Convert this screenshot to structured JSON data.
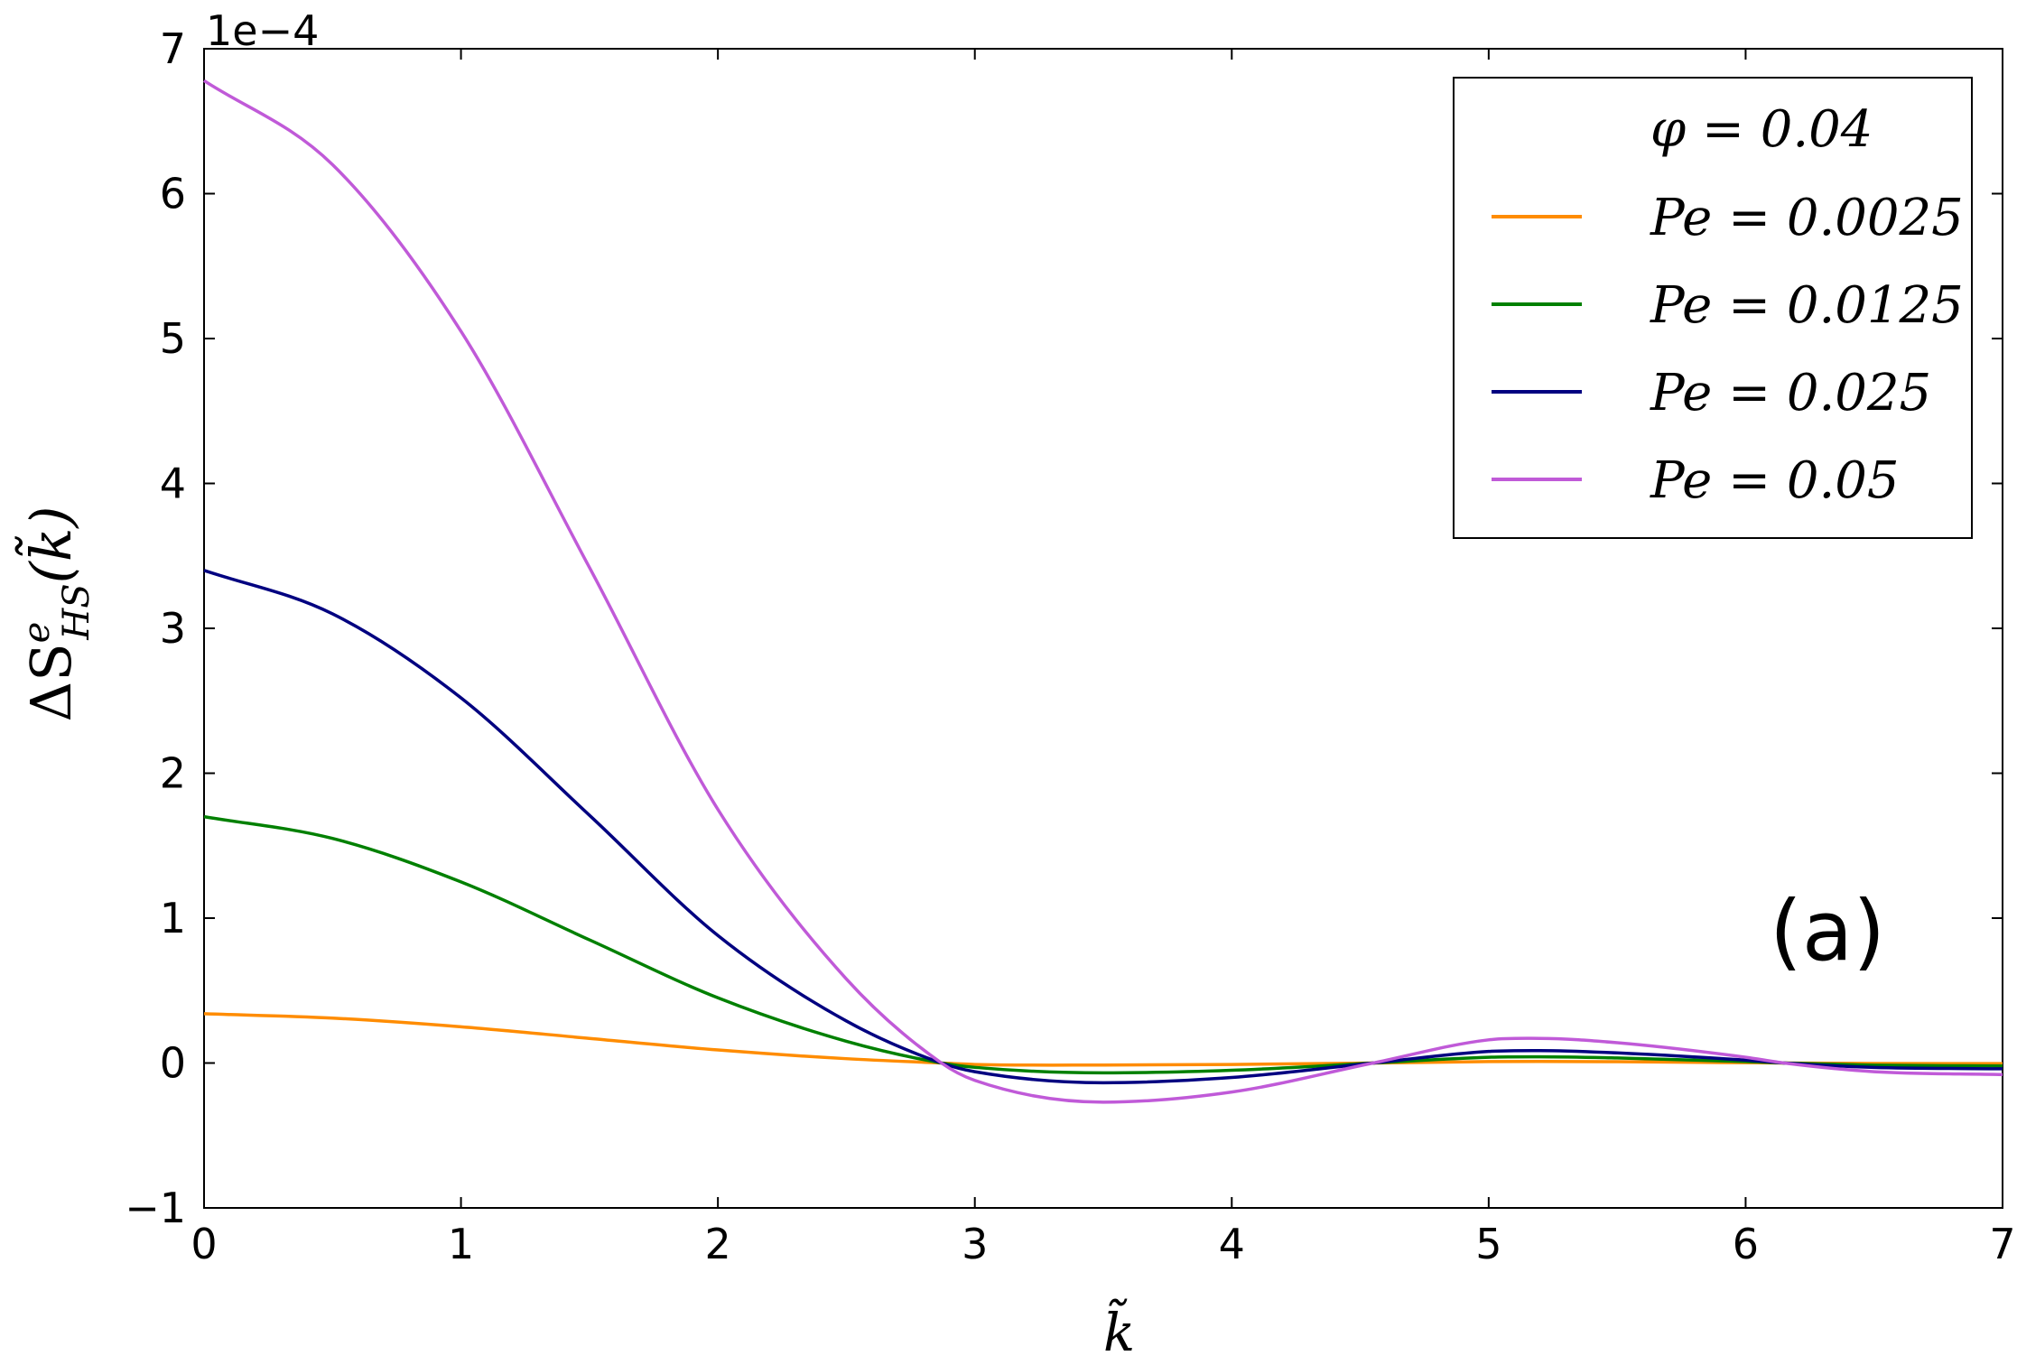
{
  "chart_data": {
    "type": "line",
    "xlabel": "k̃",
    "ylabel": "ΔS",
    "ylabel_superscript": "e",
    "ylabel_subscript": "HS",
    "ylabel_arg": "(k̃)",
    "y_offset_label": "1e−4",
    "panel_label": "(a)",
    "xlim": [
      0,
      7
    ],
    "ylim": [
      -1,
      7
    ],
    "xticks": [
      "0",
      "1",
      "2",
      "3",
      "4",
      "5",
      "6",
      "7"
    ],
    "yticks": [
      "−1",
      "0",
      "1",
      "2",
      "3",
      "4",
      "5",
      "6",
      "7"
    ],
    "xtick_values": [
      0,
      1,
      2,
      3,
      4,
      5,
      6,
      7
    ],
    "ytick_values": [
      -1,
      0,
      1,
      2,
      3,
      4,
      5,
      6,
      7
    ],
    "grid": false,
    "legend": {
      "position": "top-right",
      "header": "φ = 0.04"
    },
    "x": [
      0,
      0.5,
      1.0,
      1.5,
      2.0,
      2.5,
      2.87,
      3.0,
      3.5,
      4.0,
      4.55,
      5.0,
      5.2,
      5.5,
      6.0,
      6.15,
      6.5,
      7.0
    ],
    "series": [
      {
        "name": "Pe = 0.0025",
        "color": "#ff8c00",
        "values": [
          0.34,
          0.31,
          0.25,
          0.17,
          0.09,
          0.03,
          0.0,
          -0.01,
          -0.014,
          -0.01,
          0.0,
          0.01,
          0.011,
          0.009,
          0.002,
          0.0,
          -0.003,
          -0.004
        ]
      },
      {
        "name": "Pe = 0.0125",
        "color": "#008000",
        "values": [
          1.7,
          1.55,
          1.25,
          0.85,
          0.45,
          0.15,
          0.0,
          -0.03,
          -0.068,
          -0.05,
          0.0,
          0.04,
          0.043,
          0.035,
          0.01,
          0.0,
          -0.015,
          -0.02
        ]
      },
      {
        "name": "Pe = 0.025",
        "color": "#000080",
        "values": [
          3.4,
          3.1,
          2.52,
          1.71,
          0.88,
          0.29,
          0.0,
          -0.06,
          -0.136,
          -0.1,
          0.0,
          0.08,
          0.086,
          0.07,
          0.02,
          0.0,
          -0.03,
          -0.04
        ]
      },
      {
        "name": "Pe = 0.05",
        "color": "#c05ad8",
        "values": [
          6.78,
          6.2,
          5.05,
          3.42,
          1.75,
          0.58,
          0.0,
          -0.12,
          -0.27,
          -0.2,
          0.0,
          0.16,
          0.17,
          0.14,
          0.04,
          0.0,
          -0.06,
          -0.08
        ]
      }
    ]
  }
}
